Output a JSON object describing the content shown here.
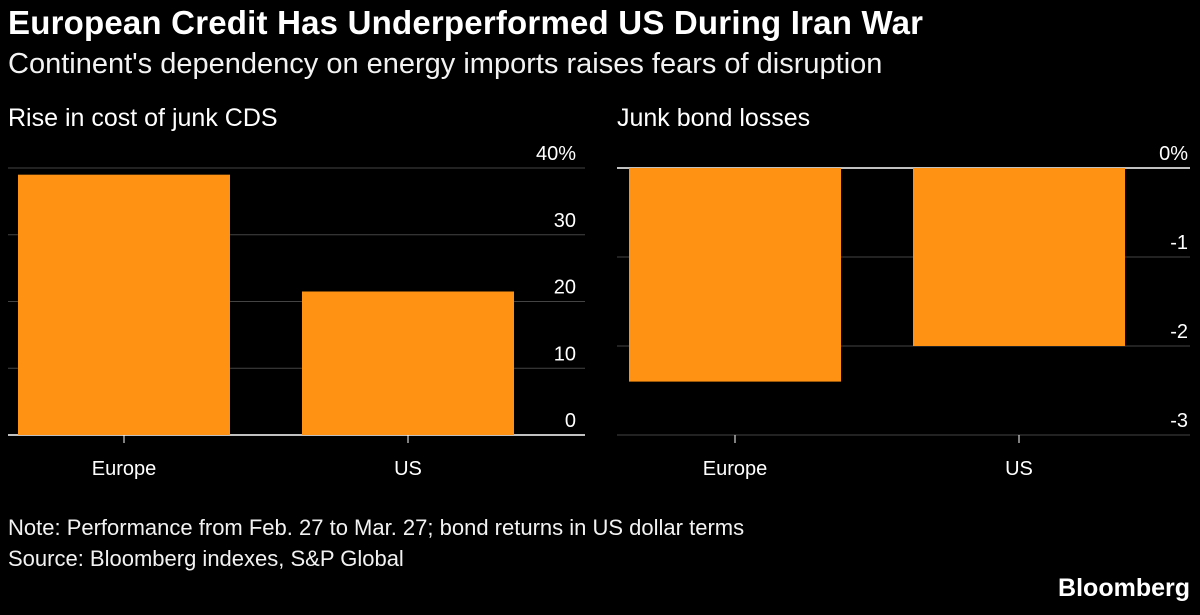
{
  "header": {
    "title": "European Credit Has Underperformed US During Iran War",
    "subtitle": "Continent's dependency on energy imports raises fears of disruption"
  },
  "footer": {
    "note": "Note: Performance from Feb. 27 to Mar. 27; bond returns in US dollar terms",
    "source": "Source: Bloomberg indexes, S&P Global",
    "brand": "Bloomberg"
  },
  "colors": {
    "bar": "#FF9212",
    "background": "#000000",
    "grid": "#444444"
  },
  "chart_data": [
    {
      "type": "bar",
      "title": "Rise in cost of junk CDS",
      "categories": [
        "Europe",
        "US"
      ],
      "values": [
        39,
        21.5
      ],
      "ylim": [
        0,
        40
      ],
      "yticks": [
        0,
        10,
        20,
        30,
        40
      ],
      "ytick_labels": [
        "0",
        "10",
        "20",
        "30",
        "40%"
      ],
      "xlabel": "",
      "ylabel": "",
      "grid": true
    },
    {
      "type": "bar",
      "title": "Junk bond losses",
      "categories": [
        "Europe",
        "US"
      ],
      "values": [
        -2.4,
        -2.0
      ],
      "ylim": [
        -3,
        0
      ],
      "yticks": [
        0,
        -1,
        -2,
        -3
      ],
      "ytick_labels": [
        "0%",
        "-1",
        "-2",
        "-3"
      ],
      "xlabel": "",
      "ylabel": "",
      "grid": true
    }
  ]
}
